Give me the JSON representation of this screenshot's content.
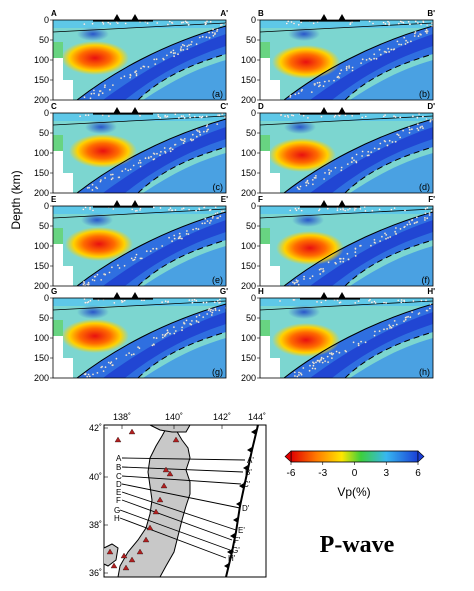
{
  "figure": {
    "y_axis_label": "Depth (km)",
    "depth_ticks": [
      "0",
      "50",
      "100",
      "150",
      "200"
    ],
    "panels": [
      {
        "start": "A",
        "end": "A'",
        "tag": "(a)"
      },
      {
        "start": "B",
        "end": "B'",
        "tag": "(b)"
      },
      {
        "start": "C",
        "end": "C'",
        "tag": "(c)"
      },
      {
        "start": "D",
        "end": "D'",
        "tag": "(d)"
      },
      {
        "start": "E",
        "end": "E'",
        "tag": "(e)"
      },
      {
        "start": "F",
        "end": "F'",
        "tag": "(f)"
      },
      {
        "start": "G",
        "end": "G'",
        "tag": "(g)"
      },
      {
        "start": "H",
        "end": "H'",
        "tag": "(h)"
      }
    ],
    "colorbar": {
      "ticks": [
        "-6",
        "-3",
        "0",
        "3",
        "6"
      ],
      "label": "Vp(%)",
      "colors": [
        "#e00000",
        "#ff7a00",
        "#ffe600",
        "#3ccf3c",
        "#37b7f0",
        "#1a3fd6"
      ]
    },
    "map": {
      "lon_ticks": [
        "138˚",
        "140˚",
        "142˚",
        "144˚"
      ],
      "lat_ticks": [
        "42˚",
        "40˚",
        "38˚",
        "36˚"
      ],
      "profile_starts": [
        "A",
        "B",
        "C",
        "D",
        "E",
        "F",
        "G",
        "H"
      ],
      "profile_ends": [
        "A'",
        "B'",
        "C'",
        "D'",
        "E'",
        "F'",
        "G'",
        "H'"
      ]
    },
    "wave_label": "P-wave"
  }
}
